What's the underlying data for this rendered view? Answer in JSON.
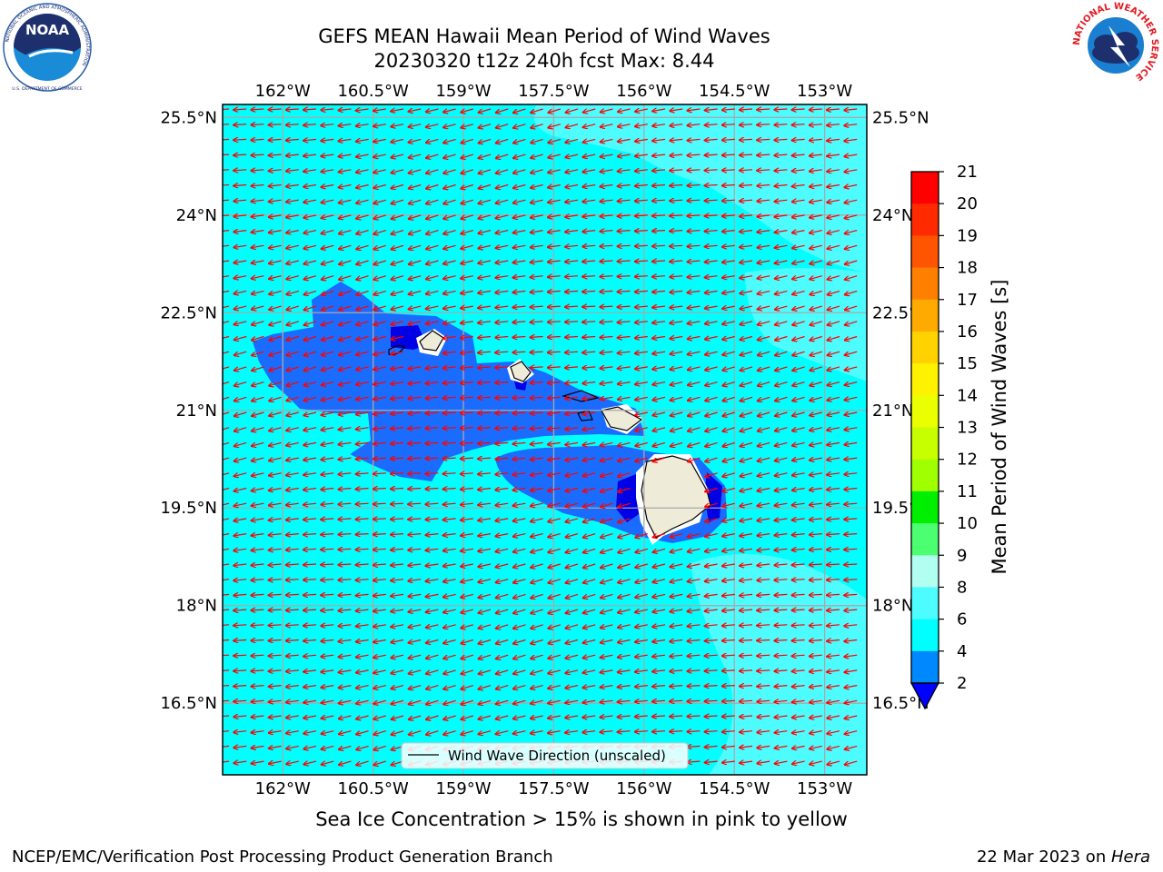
{
  "header": {
    "title_line1": "GEFS MEAN Hawaii Mean Period of Wind Waves",
    "title_line2": "20230320 t12z 240h fcst   Max: 8.44"
  },
  "logos": {
    "left": {
      "name": "NOAA",
      "ring_text": "NATIONAL OCEANIC AND ATMOSPHERIC ADMINISTRATION",
      "bottom_text": "U.S. DEPARTMENT OF COMMERCE"
    },
    "right": {
      "ring_text": "NATIONAL WEATHER SERVICE"
    }
  },
  "map": {
    "lon_labels": [
      "162°W",
      "160.5°W",
      "159°W",
      "157.5°W",
      "156°W",
      "154.5°W",
      "153°W"
    ],
    "lat_labels": [
      "25.5°N",
      "24°N",
      "22.5°N",
      "21°N",
      "19.5°N",
      "18°N",
      "16.5°N"
    ],
    "lon_values": [
      -162,
      -160.5,
      -159,
      -157.5,
      -156,
      -154.5,
      -153
    ],
    "lat_values": [
      25.5,
      24,
      22.5,
      21,
      19.5,
      18,
      16.5
    ],
    "lon_range": [
      -163,
      -152.3
    ],
    "lat_range": [
      15.4,
      25.7
    ],
    "ocean_color": "#00ffff",
    "arrow_color": "#ff0000",
    "land_color": "#efebd9",
    "legend_label": "Wind Wave Direction (unscaled)"
  },
  "colorbar": {
    "label": "Mean Period of Wind Waves [s]",
    "ticks": [
      "21",
      "20",
      "19",
      "18",
      "17",
      "16",
      "15",
      "14",
      "13",
      "12",
      "11",
      "10",
      "9",
      "8",
      "6",
      "4",
      "2"
    ],
    "colors": [
      "#ff0000",
      "#ff2a00",
      "#ff5500",
      "#ff8000",
      "#ffaa00",
      "#ffd200",
      "#fff200",
      "#eaff00",
      "#c8ff00",
      "#a0ff00",
      "#00ee00",
      "#4cff70",
      "#b0fff0",
      "#4dfcff",
      "#00ffff",
      "#0088ff",
      "#0000ff"
    ]
  },
  "notes": {
    "sea_ice": "Sea Ice Concentration > 15% is shown in pink to yellow",
    "credit_left": "NCEP/EMC/Verification Post Processing Product Generation Branch",
    "credit_date": "22 Mar 2023 on ",
    "credit_machine": "Hera"
  }
}
